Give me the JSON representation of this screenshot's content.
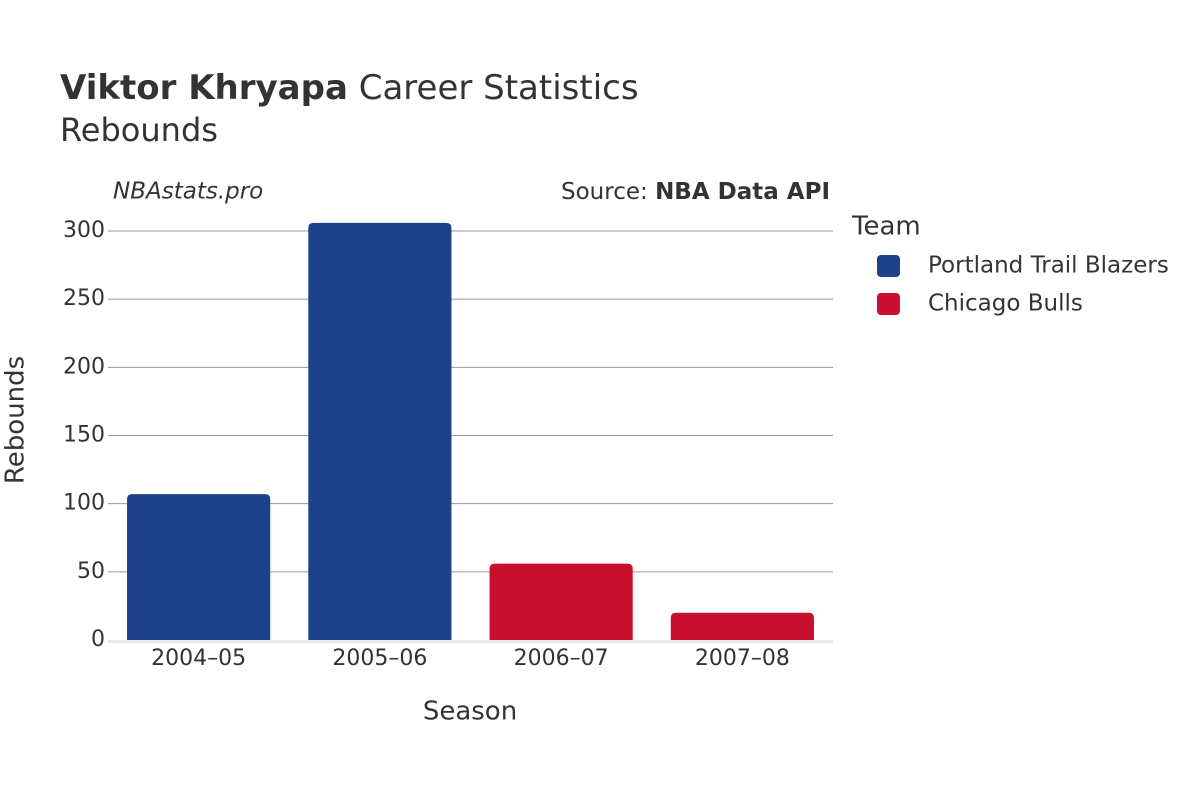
{
  "chart_data": {
    "type": "bar",
    "title_bold": "Viktor Khryapa",
    "title_rest": "Career Statistics",
    "subtitle": "Rebounds",
    "watermark": "NBAstats.pro",
    "source_label": "Source:",
    "source_name": "NBA Data API",
    "x_label": "Season",
    "y_label": "Rebounds",
    "legend_title": "Team",
    "categories": [
      "2004–05",
      "2005–06",
      "2006–07",
      "2007–08"
    ],
    "series": [
      {
        "name": "Portland Trail Blazers",
        "color": "#1d428a",
        "values": [
          107,
          306,
          null,
          null
        ]
      },
      {
        "name": "Chicago Bulls",
        "color": "#c8102e",
        "values": [
          null,
          null,
          56,
          20
        ]
      }
    ],
    "ylim": [
      0,
      310
    ],
    "yticks": [
      0,
      50,
      100,
      150,
      200,
      250,
      300
    ],
    "grid": true
  }
}
